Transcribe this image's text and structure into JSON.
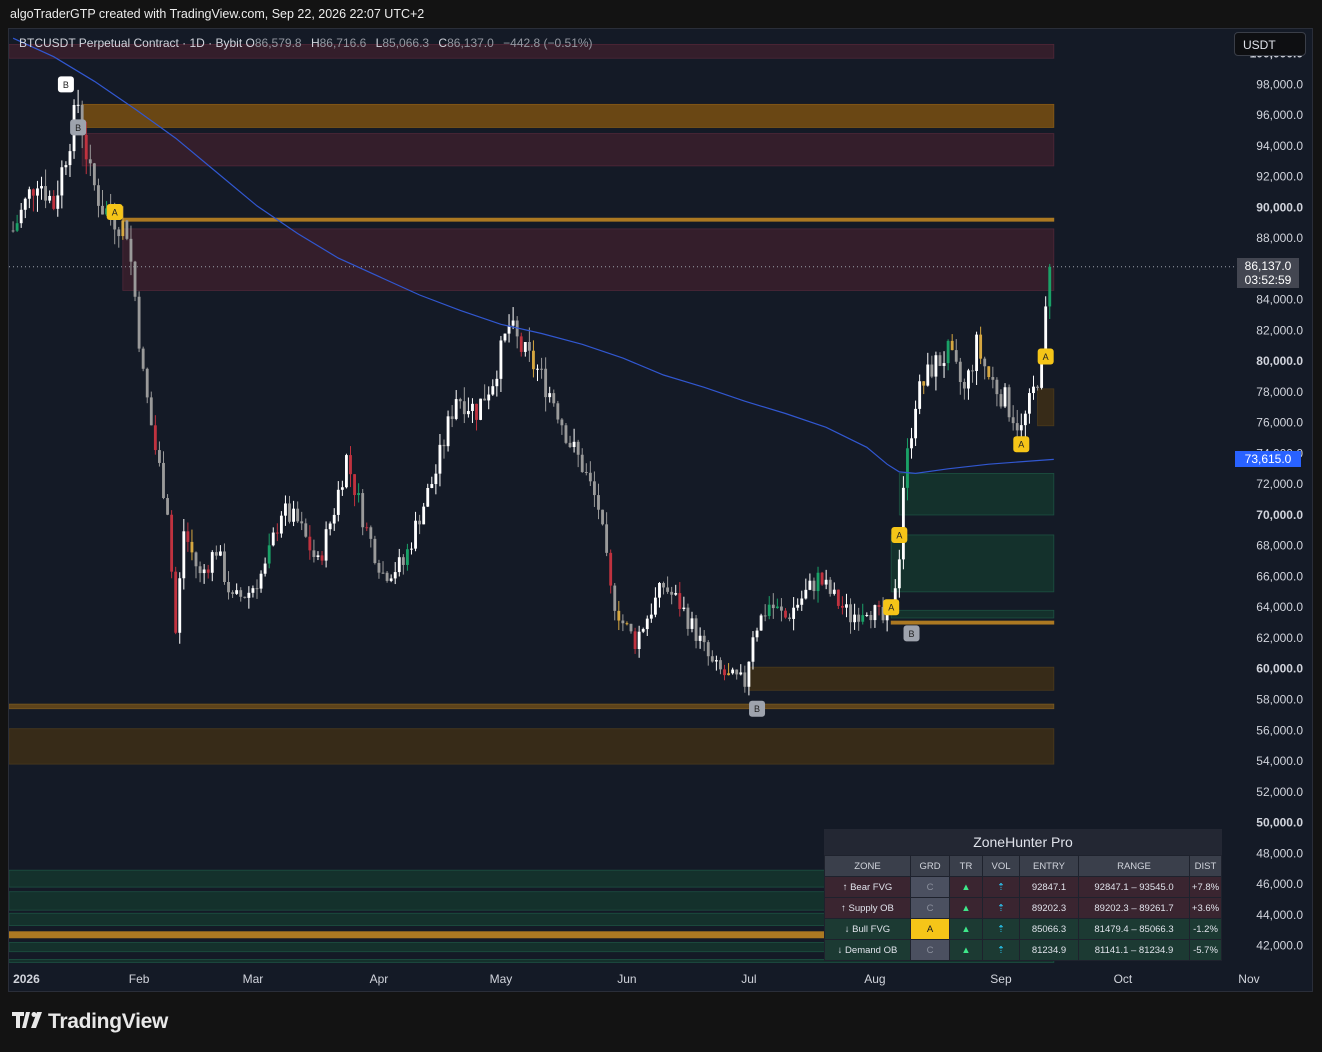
{
  "header_line": "algoTraderGTP created with TradingView.com, Sep 22, 2026 22:07 UTC+2",
  "symbol_info": "BTCUSDT Perpetual Contract · 1D · Bybit",
  "ohlc": {
    "o_label": "O",
    "o": "86,579.8",
    "h_label": "H",
    "h": "86,716.6",
    "l_label": "L",
    "l": "85,066.3",
    "c_label": "C",
    "c": "86,137.0",
    "change": "−442.8 (−0.51%)"
  },
  "currency_button": "USDT",
  "last_price": {
    "value": "86,137.0",
    "countdown": "03:52:59",
    "bg": "#434651"
  },
  "ma_price": {
    "value": "73,615.0",
    "bg": "#2962ff"
  },
  "logo": "TradingView",
  "chart_data": {
    "type": "candlestick",
    "ylim": [
      40800,
      101600
    ],
    "y_ticks": [
      {
        "v": 100000,
        "t": "100,000.0",
        "bold": true
      },
      {
        "v": 98000,
        "t": "98,000.0"
      },
      {
        "v": 96000,
        "t": "96,000.0"
      },
      {
        "v": 94000,
        "t": "94,000.0"
      },
      {
        "v": 92000,
        "t": "92,000.0"
      },
      {
        "v": 90000,
        "t": "90,000.0",
        "bold": true
      },
      {
        "v": 88000,
        "t": "88,000.0"
      },
      {
        "v": 84000,
        "t": "84,000.0"
      },
      {
        "v": 82000,
        "t": "82,000.0"
      },
      {
        "v": 80000,
        "t": "80,000.0",
        "bold": true
      },
      {
        "v": 78000,
        "t": "78,000.0"
      },
      {
        "v": 76000,
        "t": "76,000.0"
      },
      {
        "v": 74000,
        "t": "74,000.0"
      },
      {
        "v": 72000,
        "t": "72,000.0"
      },
      {
        "v": 70000,
        "t": "70,000.0",
        "bold": true
      },
      {
        "v": 68000,
        "t": "68,000.0"
      },
      {
        "v": 66000,
        "t": "66,000.0"
      },
      {
        "v": 64000,
        "t": "64,000.0"
      },
      {
        "v": 62000,
        "t": "62,000.0"
      },
      {
        "v": 60000,
        "t": "60,000.0",
        "bold": true
      },
      {
        "v": 58000,
        "t": "58,000.0"
      },
      {
        "v": 56000,
        "t": "56,000.0"
      },
      {
        "v": 54000,
        "t": "54,000.0"
      },
      {
        "v": 52000,
        "t": "52,000.0"
      },
      {
        "v": 50000,
        "t": "50,000.0",
        "bold": true
      },
      {
        "v": 48000,
        "t": "48,000.0"
      },
      {
        "v": 46000,
        "t": "46,000.0"
      },
      {
        "v": 44000,
        "t": "44,000.0"
      },
      {
        "v": 42000,
        "t": "42,000.0"
      }
    ],
    "x_ticks": [
      {
        "d": 0,
        "t": "2026",
        "bold": true
      },
      {
        "d": 31,
        "t": "Feb"
      },
      {
        "d": 59,
        "t": "Mar"
      },
      {
        "d": 90,
        "t": "Apr"
      },
      {
        "d": 120,
        "t": "May"
      },
      {
        "d": 151,
        "t": "Jun"
      },
      {
        "d": 181,
        "t": "Jul"
      },
      {
        "d": 212,
        "t": "Aug"
      },
      {
        "d": 243,
        "t": "Sep"
      },
      {
        "d": 273,
        "t": "Oct"
      },
      {
        "d": 304,
        "t": "Nov"
      }
    ],
    "x_unit": "days since Jan 1, 2026",
    "xlim": [
      -1,
      320
    ],
    "anchors": [
      [
        0,
        88500
      ],
      [
        6,
        92000
      ],
      [
        10,
        90200
      ],
      [
        16,
        96800
      ],
      [
        19,
        92000
      ],
      [
        22,
        90000
      ],
      [
        28,
        88600
      ],
      [
        30,
        84200
      ],
      [
        32,
        79000
      ],
      [
        35,
        74300
      ],
      [
        38,
        70500
      ],
      [
        40,
        62300
      ],
      [
        42,
        69000
      ],
      [
        46,
        66000
      ],
      [
        50,
        67800
      ],
      [
        54,
        64400
      ],
      [
        58,
        65000
      ],
      [
        62,
        66500
      ],
      [
        66,
        70300
      ],
      [
        70,
        69500
      ],
      [
        75,
        66800
      ],
      [
        79,
        70400
      ],
      [
        82,
        73700
      ],
      [
        87,
        69000
      ],
      [
        91,
        66200
      ],
      [
        96,
        66800
      ],
      [
        100,
        70000
      ],
      [
        104,
        72800
      ],
      [
        109,
        77800
      ],
      [
        114,
        76800
      ],
      [
        118,
        78800
      ],
      [
        122,
        82300
      ],
      [
        125,
        80800
      ],
      [
        129,
        79400
      ],
      [
        133,
        77500
      ],
      [
        137,
        74700
      ],
      [
        140,
        73200
      ],
      [
        144,
        70500
      ],
      [
        147,
        65000
      ],
      [
        150,
        63000
      ],
      [
        153,
        61800
      ],
      [
        156,
        63400
      ],
      [
        160,
        65400
      ],
      [
        164,
        64200
      ],
      [
        168,
        62300
      ],
      [
        172,
        60200
      ],
      [
        176,
        59400
      ],
      [
        180,
        59100
      ],
      [
        182,
        62400
      ],
      [
        186,
        64200
      ],
      [
        190,
        63300
      ],
      [
        194,
        64600
      ],
      [
        198,
        65900
      ],
      [
        202,
        64600
      ],
      [
        206,
        63400
      ],
      [
        210,
        64100
      ],
      [
        214,
        63100
      ],
      [
        216,
        63600
      ],
      [
        218,
        67600
      ],
      [
        219,
        72000
      ],
      [
        222,
        77500
      ],
      [
        226,
        79600
      ],
      [
        230,
        80500
      ],
      [
        234,
        78000
      ],
      [
        237,
        81000
      ],
      [
        240,
        79000
      ],
      [
        244,
        77500
      ],
      [
        248,
        75500
      ],
      [
        251,
        78000
      ],
      [
        253,
        80000
      ],
      [
        255,
        86137
      ]
    ],
    "ma": [
      [
        0,
        101000
      ],
      [
        10,
        99800
      ],
      [
        20,
        98200
      ],
      [
        30,
        96400
      ],
      [
        40,
        94500
      ],
      [
        50,
        92300
      ],
      [
        60,
        90100
      ],
      [
        70,
        88300
      ],
      [
        80,
        86700
      ],
      [
        90,
        85500
      ],
      [
        100,
        84300
      ],
      [
        110,
        83300
      ],
      [
        120,
        82400
      ],
      [
        130,
        81800
      ],
      [
        140,
        81100
      ],
      [
        150,
        80200
      ],
      [
        160,
        79100
      ],
      [
        170,
        78300
      ],
      [
        180,
        77400
      ],
      [
        190,
        76600
      ],
      [
        200,
        75700
      ],
      [
        210,
        74400
      ],
      [
        215,
        73300
      ],
      [
        218,
        72800
      ],
      [
        222,
        72700
      ],
      [
        230,
        73000
      ],
      [
        240,
        73300
      ],
      [
        250,
        73500
      ],
      [
        256,
        73615
      ]
    ],
    "zones": [
      {
        "d0": -1,
        "d1": 256,
        "lo": 99700,
        "hi": 100600,
        "fill": "#3a1f2c",
        "stroke": "#5b2a3c"
      },
      {
        "d0": 17,
        "d1": 256,
        "lo": 95200,
        "hi": 96700,
        "fill": "#7a4f12",
        "stroke": "#9a6514"
      },
      {
        "d0": 17,
        "d1": 256,
        "lo": 92700,
        "hi": 94800,
        "fill": "#3a1f2c",
        "stroke": "#5b2a3c"
      },
      {
        "d0": 27,
        "d1": 256,
        "lo": 89100,
        "hi": 89300,
        "fill": "#c78a22",
        "stroke": "#c78a22"
      },
      {
        "d0": 27,
        "d1": 256,
        "lo": 84600,
        "hi": 88600,
        "fill": "#3a1f2c",
        "stroke": "#5b2a3c"
      },
      {
        "d0": 252,
        "d1": 256,
        "lo": 75800,
        "hi": 78200,
        "fill": "#3e2e16",
        "stroke": "#54401b"
      },
      {
        "d0": 218,
        "d1": 256,
        "lo": 70000,
        "hi": 72700,
        "fill": "#15362e",
        "stroke": "#1e5a46"
      },
      {
        "d0": 216,
        "d1": 256,
        "lo": 65000,
        "hi": 68700,
        "fill": "#15362e",
        "stroke": "#1e5a46"
      },
      {
        "d0": 216,
        "d1": 256,
        "lo": 63300,
        "hi": 63800,
        "fill": "#15362e",
        "stroke": "#1e5a46"
      },
      {
        "d0": 216,
        "d1": 256,
        "lo": 62900,
        "hi": 63100,
        "fill": "#c78a22",
        "stroke": "#c78a22"
      },
      {
        "d0": 181,
        "d1": 256,
        "lo": 58600,
        "hi": 60100,
        "fill": "#3e2e16",
        "stroke": "#54401b"
      },
      {
        "d0": -1,
        "d1": 256,
        "lo": 57400,
        "hi": 57700,
        "fill": "#6a4b1a",
        "stroke": "#8a6320"
      },
      {
        "d0": -1,
        "d1": 256,
        "lo": 53800,
        "hi": 56100,
        "fill": "#3e2e16",
        "stroke": "#54401b"
      },
      {
        "d0": -1,
        "d1": 205,
        "lo": 45800,
        "hi": 46900,
        "fill": "#15362e",
        "stroke": "#1e5a46"
      },
      {
        "d0": -1,
        "d1": 205,
        "lo": 44300,
        "hi": 45500,
        "fill": "#15362e",
        "stroke": "#1e5a46"
      },
      {
        "d0": -1,
        "d1": 205,
        "lo": 43300,
        "hi": 44100,
        "fill": "#15362e",
        "stroke": "#1e5a46"
      },
      {
        "d0": -1,
        "d1": 205,
        "lo": 42500,
        "hi": 42900,
        "fill": "#c78a22",
        "stroke": "#c78a22"
      },
      {
        "d0": -1,
        "d1": 205,
        "lo": 41600,
        "hi": 42200,
        "fill": "#15362e",
        "stroke": "#1e5a46"
      },
      {
        "d0": -1,
        "d1": 256,
        "lo": 40900,
        "hi": 41100,
        "fill": "#15362e",
        "stroke": "#1e5a46"
      }
    ],
    "markers": [
      {
        "d": 13,
        "p": 98000,
        "t": "B",
        "kind": "white"
      },
      {
        "d": 16,
        "p": 95200,
        "t": "B",
        "kind": "gray"
      },
      {
        "d": 25,
        "p": 89700,
        "t": "A",
        "kind": "yellow"
      },
      {
        "d": 183,
        "p": 57400,
        "t": "B",
        "kind": "gray"
      },
      {
        "d": 216,
        "p": 64000,
        "t": "A",
        "kind": "yellow"
      },
      {
        "d": 218,
        "p": 68700,
        "t": "A",
        "kind": "yellow"
      },
      {
        "d": 221,
        "p": 62300,
        "t": "B",
        "kind": "gray"
      },
      {
        "d": 248,
        "p": 74600,
        "t": "A",
        "kind": "yellow"
      },
      {
        "d": 254,
        "p": 80300,
        "t": "A",
        "kind": "yellow"
      }
    ],
    "last_price": 86137,
    "ma_value": 73615,
    "colors": {
      "up": "#ffffff",
      "down": "#9a9a9a",
      "up_hi": "#1aa167",
      "down_hi": "#c0323f",
      "gold": "#d6a740",
      "ma": "#3157d0"
    }
  },
  "zone_table": {
    "title": "ZoneHunter Pro",
    "headers": [
      "ZONE",
      "GRD",
      "TR",
      "VOL",
      "ENTRY",
      "RANGE",
      "DIST"
    ],
    "rows": [
      {
        "zone": "↑ Bear FVG",
        "grd": "C",
        "tr": "▲",
        "vol": "⇡",
        "entry": "92847.1",
        "range": "92847.1 – 93545.0",
        "dist": "+7.8%",
        "type": "bear"
      },
      {
        "zone": "↑ Supply OB",
        "grd": "C",
        "tr": "▲",
        "vol": "⇡",
        "entry": "89202.3",
        "range": "89202.3 – 89261.7",
        "dist": "+3.6%",
        "type": "bear"
      },
      {
        "zone": "↓ Bull FVG",
        "grd": "A",
        "tr": "▲",
        "vol": "⇡",
        "entry": "85066.3",
        "range": "81479.4 – 85066.3",
        "dist": "-1.2%",
        "type": "bull"
      },
      {
        "zone": "↓ Demand OB",
        "grd": "C",
        "tr": "▲",
        "vol": "⇡",
        "entry": "81234.9",
        "range": "81141.1 – 81234.9",
        "dist": "-5.7%",
        "type": "bull"
      }
    ]
  }
}
